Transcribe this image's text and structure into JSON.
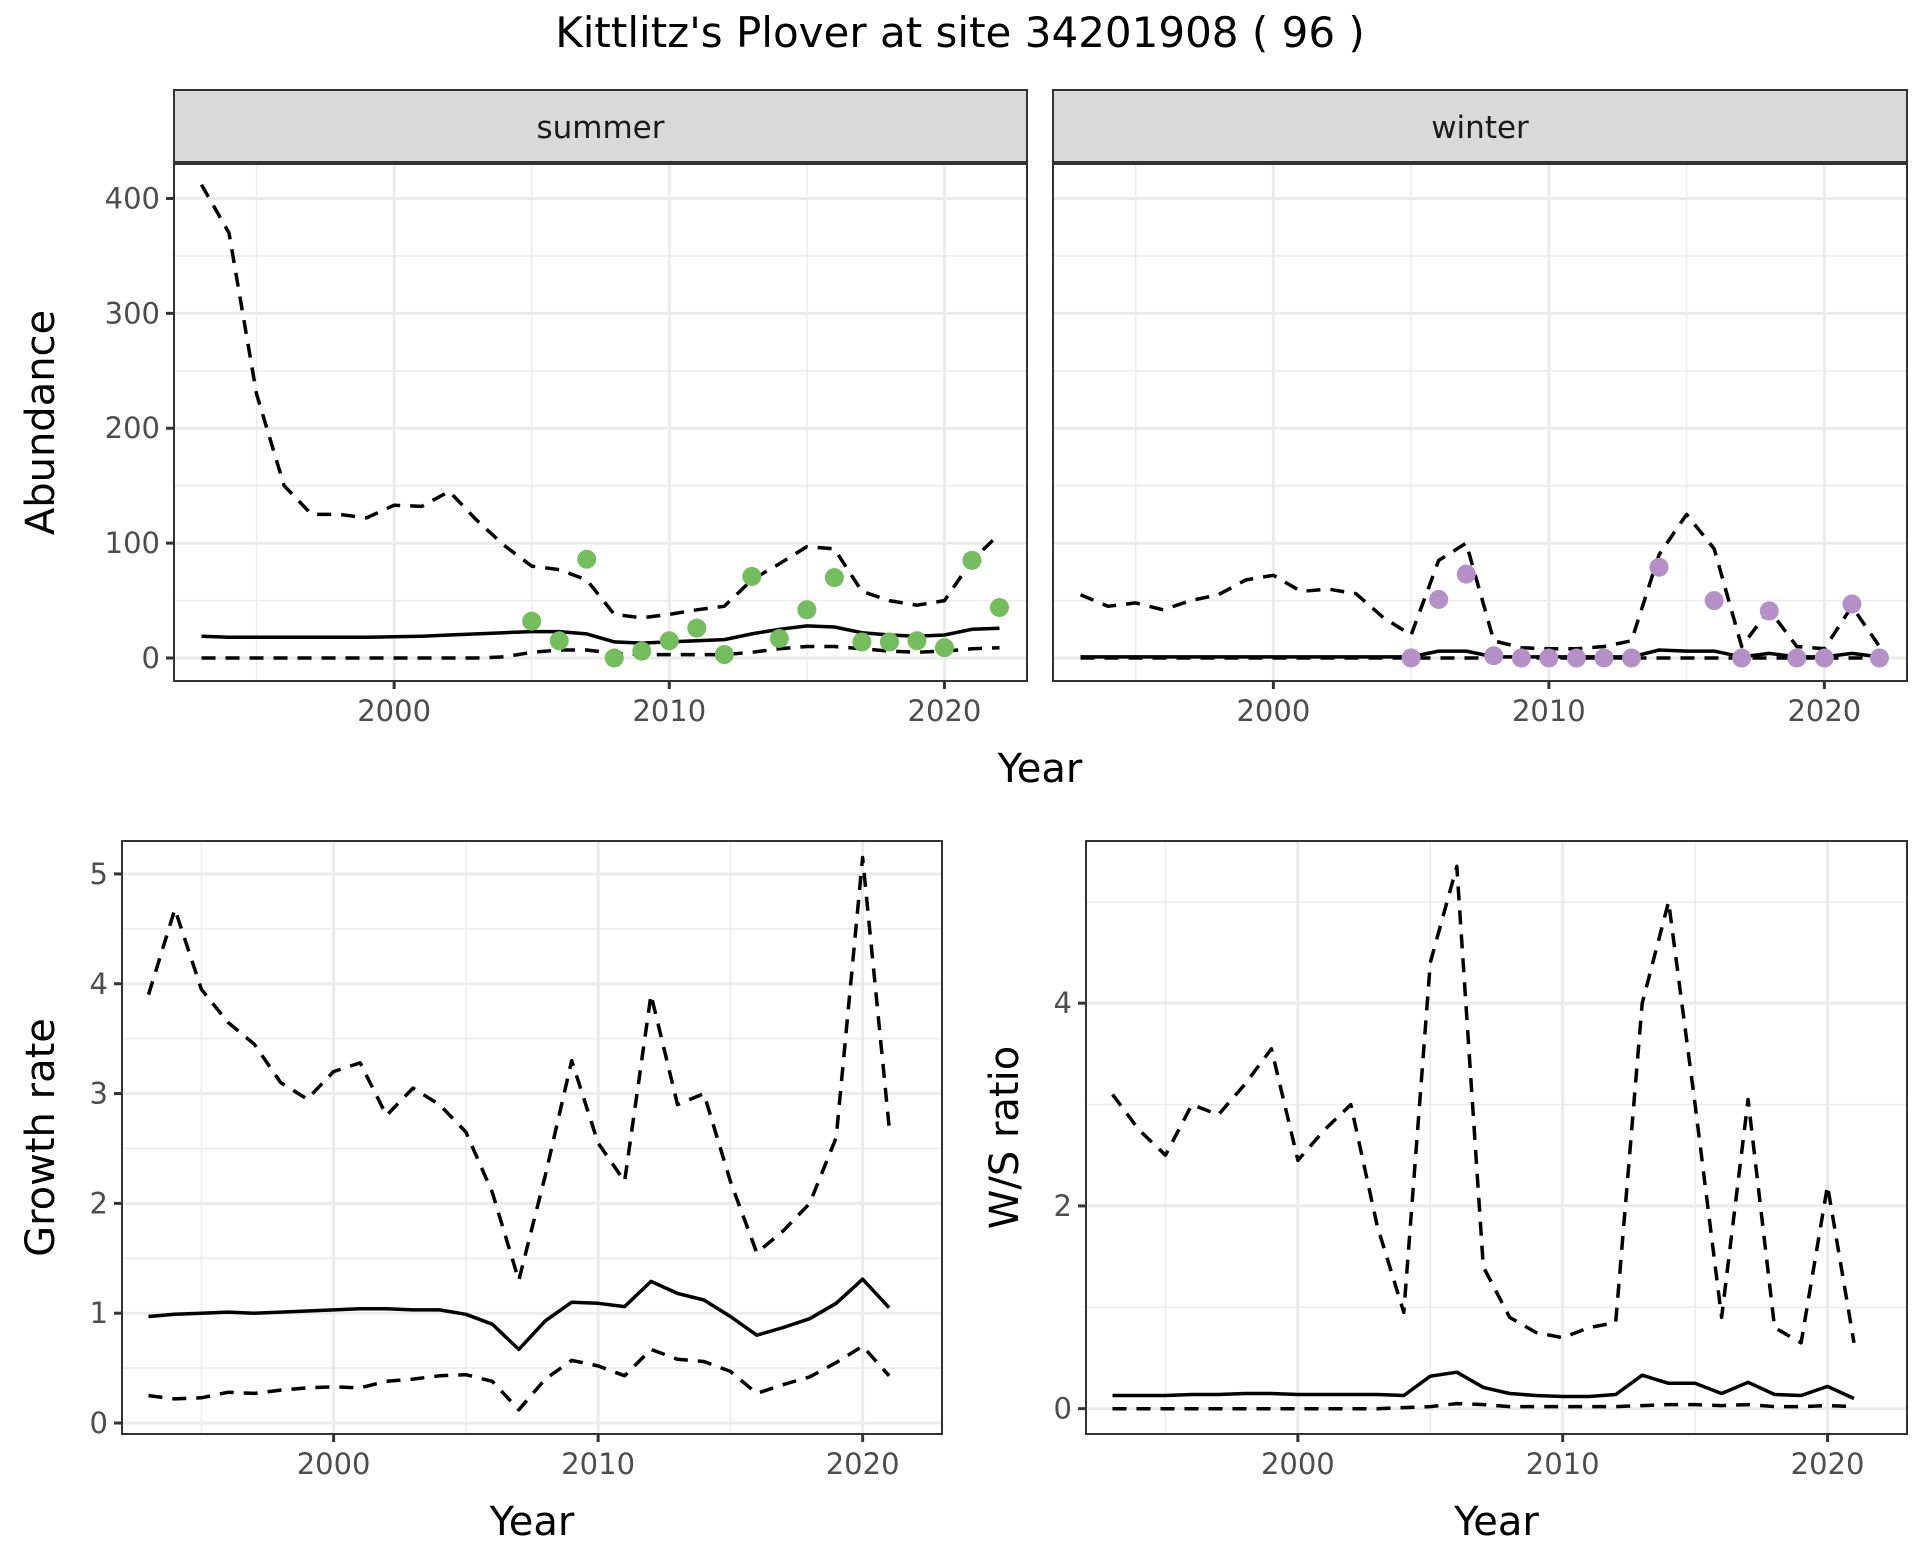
{
  "title": "Kittlitz's Plover at site 34201908 ( 96 )",
  "colors": {
    "summer_points": "#74bd5c",
    "winter_points": "#b48fc8",
    "line": "#000000",
    "strip_bg": "#d9d9d9",
    "grid": "#ebebeb",
    "axis_text": "#4d4d4d"
  },
  "chart_data": [
    {
      "id": "abundance",
      "type": "line",
      "ylabel": "Abundance",
      "xlabel": "Year",
      "xlim": [
        1992,
        2023
      ],
      "ylim": [
        -20,
        430
      ],
      "xticks": [
        2000,
        2010,
        2020
      ],
      "yticks": [
        0,
        100,
        200,
        300,
        400
      ],
      "grid": true,
      "facets": [
        {
          "label": "summer",
          "point_color_key": "summer_points",
          "x": [
            1993,
            1994,
            1995,
            1996,
            1997,
            1998,
            1999,
            2000,
            2001,
            2002,
            2003,
            2004,
            2005,
            2006,
            2007,
            2008,
            2009,
            2010,
            2011,
            2012,
            2013,
            2014,
            2015,
            2016,
            2017,
            2018,
            2019,
            2020,
            2021,
            2022
          ],
          "mean": [
            19,
            18,
            18,
            18,
            18,
            18,
            18,
            18.5,
            19,
            20,
            21,
            22,
            23,
            23,
            21,
            14,
            13,
            14,
            15,
            16,
            21,
            25,
            28,
            27,
            22,
            20,
            19,
            20,
            25,
            26
          ],
          "upper": [
            412,
            370,
            230,
            150,
            125,
            125,
            122,
            133,
            132,
            145,
            120,
            98,
            80,
            77,
            68,
            38,
            35,
            38,
            42,
            45,
            68,
            82,
            97,
            95,
            58,
            50,
            46,
            50,
            85,
            108
          ],
          "lower": [
            0,
            0,
            0,
            0,
            0,
            0,
            0,
            0,
            0,
            0,
            0,
            1,
            5,
            7,
            7,
            4,
            3,
            3,
            3,
            3,
            5,
            8,
            10,
            10,
            8,
            6,
            5,
            6,
            8,
            9
          ],
          "points": {
            "x": [
              2005,
              2006,
              2007,
              2008,
              2009,
              2010,
              2011,
              2012,
              2013,
              2014,
              2015,
              2016,
              2017,
              2018,
              2019,
              2020,
              2021,
              2022
            ],
            "y": [
              32,
              15,
              86,
              0,
              6,
              15,
              26,
              3,
              71,
              17,
              42,
              70,
              14,
              14,
              15,
              9,
              85,
              44
            ]
          }
        },
        {
          "label": "winter",
          "point_color_key": "winter_points",
          "x": [
            1993,
            1994,
            1995,
            1996,
            1997,
            1998,
            1999,
            2000,
            2001,
            2002,
            2003,
            2004,
            2005,
            2006,
            2007,
            2008,
            2009,
            2010,
            2011,
            2012,
            2013,
            2014,
            2015,
            2016,
            2017,
            2018,
            2019,
            2020,
            2021,
            2022
          ],
          "mean": [
            1,
            1,
            1,
            1,
            1,
            1,
            1,
            1,
            1,
            1,
            1,
            1,
            1,
            6,
            6,
            1,
            1,
            1,
            1,
            1,
            1,
            7,
            6,
            6,
            1,
            4,
            1,
            1,
            4,
            1
          ],
          "upper": [
            55,
            45,
            48,
            42,
            50,
            55,
            68,
            72,
            58,
            60,
            56,
            35,
            20,
            85,
            100,
            15,
            9,
            8,
            8,
            10,
            15,
            90,
            125,
            95,
            10,
            42,
            10,
            8,
            45,
            10
          ],
          "lower": [
            0,
            0,
            0,
            0,
            0,
            0,
            0,
            0,
            0,
            0,
            0,
            0,
            0,
            0,
            0,
            0,
            0,
            0,
            0,
            0,
            0,
            0,
            0,
            0,
            0,
            0,
            0,
            0,
            0,
            0
          ],
          "points": {
            "x": [
              2005,
              2006,
              2007,
              2008,
              2009,
              2010,
              2011,
              2012,
              2013,
              2014,
              2015,
              2016,
              2017,
              2018,
              2019,
              2020,
              2021,
              2022
            ],
            "y": [
              0,
              51,
              73,
              2,
              0,
              0,
              0,
              0,
              0,
              79,
              null,
              50,
              0,
              41,
              0,
              0,
              47,
              0
            ]
          }
        }
      ]
    },
    {
      "id": "growth",
      "type": "line",
      "ylabel": "Growth rate",
      "xlabel": "Year",
      "xlim": [
        1992,
        2023
      ],
      "ylim": [
        -0.1,
        5.3
      ],
      "xticks": [
        2000,
        2010,
        2020
      ],
      "yticks": [
        0,
        1,
        2,
        3,
        4,
        5
      ],
      "grid": true,
      "x": [
        1993,
        1994,
        1995,
        1996,
        1997,
        1998,
        1999,
        2000,
        2001,
        2002,
        2003,
        2004,
        2005,
        2006,
        2007,
        2008,
        2009,
        2010,
        2011,
        2012,
        2013,
        2014,
        2015,
        2016,
        2017,
        2018,
        2019,
        2020,
        2021
      ],
      "mean": [
        0.97,
        0.99,
        1.0,
        1.01,
        1.0,
        1.01,
        1.02,
        1.03,
        1.04,
        1.04,
        1.03,
        1.03,
        0.99,
        0.9,
        0.67,
        0.93,
        1.1,
        1.09,
        1.06,
        1.29,
        1.18,
        1.12,
        0.97,
        0.8,
        0.87,
        0.95,
        1.09,
        1.31,
        1.05
      ],
      "upper": [
        3.9,
        4.68,
        3.95,
        3.65,
        3.45,
        3.1,
        2.95,
        3.2,
        3.28,
        2.8,
        3.05,
        2.9,
        2.65,
        2.1,
        1.3,
        2.25,
        3.3,
        2.55,
        2.2,
        3.9,
        2.9,
        3.0,
        2.2,
        1.55,
        1.75,
        2.0,
        2.6,
        5.15,
        2.7
      ],
      "lower": [
        0.25,
        0.22,
        0.23,
        0.28,
        0.27,
        0.3,
        0.32,
        0.33,
        0.32,
        0.38,
        0.4,
        0.43,
        0.44,
        0.38,
        0.12,
        0.4,
        0.57,
        0.52,
        0.43,
        0.67,
        0.58,
        0.56,
        0.47,
        0.27,
        0.35,
        0.42,
        0.55,
        0.7,
        0.43
      ]
    },
    {
      "id": "ws_ratio",
      "type": "line",
      "ylabel": "W/S ratio",
      "xlabel": "Year",
      "xlim": [
        1992,
        2023
      ],
      "ylim": [
        -0.25,
        5.6
      ],
      "xticks": [
        2000,
        2010,
        2020
      ],
      "yticks": [
        0,
        2,
        4
      ],
      "grid": true,
      "x": [
        1993,
        1994,
        1995,
        1996,
        1997,
        1998,
        1999,
        2000,
        2001,
        2002,
        2003,
        2004,
        2005,
        2006,
        2007,
        2008,
        2009,
        2010,
        2011,
        2012,
        2013,
        2014,
        2015,
        2016,
        2017,
        2018,
        2019,
        2020,
        2021
      ],
      "mean": [
        0.13,
        0.13,
        0.13,
        0.14,
        0.14,
        0.15,
        0.15,
        0.14,
        0.14,
        0.14,
        0.14,
        0.13,
        0.32,
        0.36,
        0.21,
        0.15,
        0.13,
        0.12,
        0.12,
        0.14,
        0.33,
        0.25,
        0.25,
        0.15,
        0.26,
        0.14,
        0.13,
        0.22,
        0.1
      ],
      "upper": [
        3.1,
        2.75,
        2.5,
        3.0,
        2.9,
        3.2,
        3.55,
        2.45,
        2.75,
        3.0,
        1.8,
        0.95,
        4.4,
        5.35,
        1.4,
        0.9,
        0.75,
        0.7,
        0.8,
        0.85,
        4.0,
        5.0,
        3.0,
        0.9,
        3.05,
        0.8,
        0.65,
        2.2,
        0.65
      ],
      "lower": [
        0,
        0,
        0,
        0,
        0,
        0,
        0,
        0,
        0,
        0,
        0,
        0.01,
        0.02,
        0.05,
        0.04,
        0.02,
        0.02,
        0.02,
        0.02,
        0.02,
        0.03,
        0.04,
        0.04,
        0.03,
        0.04,
        0.02,
        0.02,
        0.03,
        0.02
      ]
    }
  ]
}
